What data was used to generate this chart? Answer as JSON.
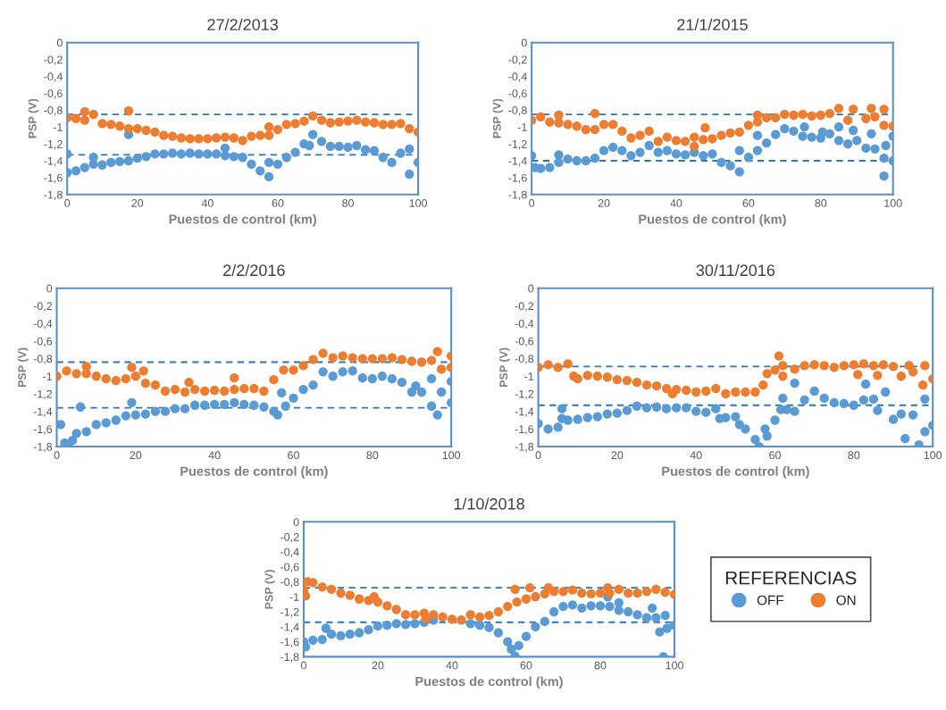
{
  "chart_data": [
    {
      "type": "scatter",
      "title": "27/2/2013",
      "xlabel": "Puestos de control (km)",
      "ylabel": "PSP (V)",
      "xlim": [
        0,
        100
      ],
      "ylim": [
        -1.8,
        0
      ],
      "xticks": [
        0,
        20,
        40,
        60,
        80,
        100
      ],
      "yticks": [
        {
          "value": -1.8,
          "label": "-1,8"
        },
        {
          "value": -1.6,
          "label": "-1,6"
        },
        {
          "value": -1.4,
          "label": "-1,4"
        },
        {
          "value": -1.2,
          "label": "-1,2"
        },
        {
          "value": -1,
          "label": "-1"
        },
        {
          "value": -0.8,
          "label": "-0,8"
        },
        {
          "value": -0.6,
          "label": "-0,6"
        },
        {
          "value": -0.4,
          "label": "-0,4"
        },
        {
          "value": -0.2,
          "label": "-0,2"
        },
        0
      ],
      "grid": false,
      "legend": false,
      "marker": "circle",
      "ref_lines": [
        {
          "axis": "y",
          "value": -0.85,
          "color": "#2e75b6",
          "line_style": "dashed"
        },
        {
          "axis": "y",
          "value": -1.33,
          "color": "#2e75b6",
          "line_style": "dashed"
        }
      ],
      "series": [
        {
          "color": "#5b9bd5",
          "x": [
            0,
            0,
            2.5,
            5,
            7.5,
            7.5,
            10,
            12.5,
            15,
            17.5,
            17.5,
            20,
            22.5,
            25,
            27.5,
            30,
            32.5,
            35,
            37.5,
            40,
            42.5,
            45,
            45,
            47.5,
            50,
            52.5,
            55,
            57.5,
            57.5,
            60,
            62.5,
            65,
            67.5,
            69,
            70,
            72.5,
            75,
            77.5,
            80,
            82.5,
            85,
            87.5,
            90,
            92.5,
            95,
            97.5,
            97.5,
            100
          ],
          "values": [
            -1.32,
            -1.54,
            -1.52,
            -1.48,
            -1.36,
            -1.44,
            -1.45,
            -1.42,
            -1.41,
            -1.4,
            -1.09,
            -1.37,
            -1.35,
            -1.32,
            -1.32,
            -1.31,
            -1.32,
            -1.31,
            -1.32,
            -1.32,
            -1.32,
            -1.25,
            -1.34,
            -1.35,
            -1.36,
            -1.44,
            -1.52,
            -1.59,
            -1.42,
            -1.44,
            -1.36,
            -1.3,
            -1.2,
            -1.22,
            -1.09,
            -1.17,
            -1.23,
            -1.23,
            -1.24,
            -1.22,
            -1.27,
            -1.28,
            -1.36,
            -1.42,
            -1.31,
            -1.56,
            -1.26,
            -1.42
          ]
        },
        {
          "color": "#ed7d31",
          "x": [
            0,
            2.5,
            5,
            5,
            7.5,
            10,
            12.5,
            15,
            17.5,
            17.5,
            20,
            22.5,
            25,
            27.5,
            30,
            32.5,
            35,
            37.5,
            40,
            42.5,
            45,
            47.5,
            50,
            52.5,
            55,
            57.5,
            57.5,
            60,
            62.5,
            65,
            67.5,
            70,
            72.5,
            75,
            77.5,
            80,
            82.5,
            85,
            87.5,
            90,
            92.5,
            95,
            97.5,
            100
          ],
          "values": [
            -0.89,
            -0.9,
            -0.82,
            -0.92,
            -0.85,
            -0.96,
            -0.97,
            -0.99,
            -0.81,
            -1.02,
            -1.02,
            -1.04,
            -1.06,
            -1.1,
            -1.11,
            -1.13,
            -1.14,
            -1.14,
            -1.14,
            -1.13,
            -1.12,
            -1.13,
            -1.16,
            -1.11,
            -1.1,
            -1.1,
            -1.0,
            -1.03,
            -0.97,
            -0.96,
            -0.93,
            -0.87,
            -0.92,
            -0.95,
            -0.94,
            -0.93,
            -0.92,
            -0.94,
            -0.95,
            -0.97,
            -0.97,
            -0.96,
            -1.02,
            -1.06
          ]
        }
      ]
    },
    {
      "type": "scatter",
      "title": "21/1/2015",
      "xlabel": "Puestos de control (km)",
      "ylabel": "PSP (V)",
      "xlim": [
        0,
        100
      ],
      "ylim": [
        -1.8,
        0
      ],
      "xticks": [
        0,
        20,
        40,
        60,
        80,
        100
      ],
      "yticks": [
        {
          "value": -1.8,
          "label": "-1,8"
        },
        {
          "value": -1.6,
          "label": "-1,6"
        },
        {
          "value": -1.4,
          "label": "-1,4"
        },
        {
          "value": -1.2,
          "label": "-1,2"
        },
        {
          "value": -1,
          "label": "-1"
        },
        {
          "value": -0.8,
          "label": "-0,8"
        },
        {
          "value": -0.6,
          "label": "-0,6"
        },
        {
          "value": -0.4,
          "label": "-0,4"
        },
        {
          "value": -0.2,
          "label": "-0,2"
        },
        0
      ],
      "grid": false,
      "legend": false,
      "marker": "circle",
      "ref_lines": [
        {
          "axis": "y",
          "value": -0.85,
          "color": "#2e75b6",
          "line_style": "dashed"
        },
        {
          "axis": "y",
          "value": -1.4,
          "color": "#2e75b6",
          "line_style": "dashed"
        }
      ],
      "series": [
        {
          "color": "#5b9bd5",
          "x": [
            0,
            1,
            2.5,
            5,
            7.5,
            7.5,
            10,
            12.5,
            15,
            17.5,
            20,
            22.5,
            25,
            27.5,
            30,
            32.5,
            35,
            37.5,
            40,
            42.5,
            45,
            47.5,
            50,
            52.5,
            55,
            57.5,
            57.5,
            60,
            62.5,
            62.5,
            65,
            67.5,
            70,
            72.5,
            75,
            75.5,
            77.5,
            80,
            80.5,
            82.5,
            85,
            85,
            87.5,
            89,
            90,
            92.5,
            94,
            95,
            97.5,
            97.5,
            98,
            100,
            100
          ],
          "values": [
            -1.34,
            -1.48,
            -1.49,
            -1.48,
            -1.33,
            -1.42,
            -1.38,
            -1.4,
            -1.4,
            -1.37,
            -1.28,
            -1.24,
            -1.28,
            -1.34,
            -1.3,
            -1.22,
            -1.3,
            -1.28,
            -1.32,
            -1.33,
            -1.3,
            -1.34,
            -1.32,
            -1.42,
            -1.46,
            -1.53,
            -1.28,
            -1.36,
            -1.28,
            -1.1,
            -1.19,
            -1.09,
            -1.02,
            -1.05,
            -1.11,
            -1.0,
            -1.12,
            -1.13,
            -1.06,
            -1.08,
            -1.16,
            -1.0,
            -1.2,
            -1.04,
            -1.16,
            -1.25,
            -1.08,
            -1.26,
            -1.58,
            -1.37,
            -1.22,
            -1.4,
            -1.11
          ]
        },
        {
          "color": "#ed7d31",
          "x": [
            0,
            2.5,
            5,
            7.5,
            7.5,
            10,
            12.5,
            15,
            17.5,
            17.5,
            20,
            22.5,
            25,
            27.5,
            30,
            32.5,
            35,
            37.5,
            40,
            42.5,
            45,
            45,
            47.5,
            48,
            50,
            52.5,
            55,
            57.5,
            60,
            62.5,
            62.5,
            65,
            67.5,
            70,
            72.5,
            75,
            77.5,
            80,
            82.5,
            85,
            87.5,
            89,
            92.5,
            94,
            95,
            97.5,
            97.5,
            100
          ],
          "values": [
            -0.92,
            -0.88,
            -0.94,
            -0.86,
            -0.95,
            -0.97,
            -0.99,
            -1.03,
            -0.84,
            -1.03,
            -0.97,
            -0.97,
            -1.05,
            -1.13,
            -1.1,
            -1.05,
            -1.17,
            -1.12,
            -1.16,
            -1.17,
            -1.23,
            -1.12,
            -1.15,
            -1.01,
            -1.14,
            -1.1,
            -1.07,
            -1.06,
            -0.98,
            -0.94,
            -0.86,
            -0.89,
            -0.89,
            -0.85,
            -0.86,
            -0.85,
            -0.87,
            -0.86,
            -0.84,
            -0.78,
            -0.92,
            -0.79,
            -0.9,
            -0.78,
            -0.88,
            -0.79,
            -0.98,
            -0.99
          ]
        }
      ]
    },
    {
      "type": "scatter",
      "title": "2/2/2016",
      "xlabel": "Puestos de control (km)",
      "ylabel": "PSP (V)",
      "xlim": [
        0,
        100
      ],
      "ylim": [
        -1.8,
        0
      ],
      "xticks": [
        0,
        20,
        40,
        60,
        80,
        100
      ],
      "yticks": [
        {
          "value": -1.8,
          "label": "-1,8"
        },
        {
          "value": -1.6,
          "label": "-1,6"
        },
        {
          "value": -1.4,
          "label": "-1,4"
        },
        {
          "value": -1.2,
          "label": "-1,2"
        },
        {
          "value": -1,
          "label": "-1"
        },
        {
          "value": -0.8,
          "label": "-0,8"
        },
        {
          "value": -0.6,
          "label": "-0,6"
        },
        {
          "value": -0.4,
          "label": "-0,4"
        },
        {
          "value": -0.2,
          "label": "-0,2"
        },
        0
      ],
      "grid": false,
      "legend": false,
      "marker": "circle",
      "ref_lines": [
        {
          "axis": "y",
          "value": -0.84,
          "color": "#2e75b6",
          "line_style": "dashed"
        },
        {
          "axis": "y",
          "value": -1.36,
          "color": "#2e75b6",
          "line_style": "dashed"
        }
      ],
      "series": [
        {
          "color": "#5b9bd5",
          "x": [
            1,
            2,
            3,
            4,
            5,
            6,
            7.5,
            10,
            12.5,
            15,
            17.5,
            19,
            20,
            22.5,
            25,
            27.5,
            30,
            32.5,
            35,
            37.5,
            40,
            42.5,
            45,
            47.5,
            50,
            52.5,
            55,
            56,
            57,
            58,
            60,
            62.5,
            65,
            67.5,
            70,
            72.5,
            75,
            77.5,
            80,
            82.5,
            85,
            87.5,
            90,
            91,
            92.5,
            95,
            95,
            96.5,
            97.5,
            100,
            100
          ],
          "values": [
            -1.55,
            -1.76,
            -1.78,
            -1.73,
            -1.65,
            -1.35,
            -1.63,
            -1.55,
            -1.53,
            -1.5,
            -1.45,
            -1.3,
            -1.44,
            -1.43,
            -1.4,
            -1.4,
            -1.37,
            -1.37,
            -1.33,
            -1.33,
            -1.32,
            -1.32,
            -1.3,
            -1.32,
            -1.33,
            -1.35,
            -1.4,
            -1.44,
            -1.19,
            -1.34,
            -1.25,
            -1.15,
            -1.1,
            -0.95,
            -1.0,
            -0.95,
            -0.94,
            -1.02,
            -1.03,
            -1.0,
            -1.03,
            -1.07,
            -1.18,
            -1.11,
            -1.18,
            -1.03,
            -1.34,
            -1.44,
            -1.18,
            -1.3,
            -1.06
          ]
        },
        {
          "color": "#ed7d31",
          "x": [
            0,
            2.5,
            5,
            7.5,
            7.5,
            10,
            12.5,
            15,
            17.5,
            19,
            20,
            22,
            22.5,
            25,
            27.5,
            30,
            32.5,
            33.5,
            35,
            37.5,
            40,
            42.5,
            45,
            45,
            47.5,
            50,
            52.5,
            55,
            57.5,
            60,
            62.5,
            65,
            67.5,
            70,
            72.5,
            75,
            77.5,
            80,
            82.5,
            85,
            87.5,
            90,
            92.5,
            95,
            96.5,
            97.5,
            100,
            100
          ],
          "values": [
            -1.0,
            -0.94,
            -0.97,
            -0.89,
            -0.97,
            -1.0,
            -1.03,
            -1.05,
            -1.03,
            -0.9,
            -1.0,
            -0.94,
            -1.08,
            -1.1,
            -1.17,
            -1.15,
            -1.18,
            -1.07,
            -1.15,
            -1.17,
            -1.16,
            -1.17,
            -1.02,
            -1.15,
            -1.14,
            -1.14,
            -1.17,
            -1.04,
            -0.93,
            -0.93,
            -0.88,
            -0.81,
            -0.74,
            -0.79,
            -0.77,
            -0.79,
            -0.8,
            -0.8,
            -0.8,
            -0.79,
            -0.81,
            -0.83,
            -0.84,
            -0.82,
            -0.72,
            -0.92,
            -0.77,
            -0.9
          ]
        }
      ]
    },
    {
      "type": "scatter",
      "title": "30/11/2016",
      "xlabel": "Puestos de control (km)",
      "ylabel": "PSP (V)",
      "xlim": [
        0,
        100
      ],
      "ylim": [
        -1.8,
        0
      ],
      "xticks": [
        0,
        20,
        40,
        60,
        80,
        100
      ],
      "yticks": [
        {
          "value": -1.8,
          "label": "-1,8"
        },
        {
          "value": -1.6,
          "label": "-1,6"
        },
        {
          "value": -1.4,
          "label": "-1,4"
        },
        {
          "value": -1.2,
          "label": "-1,2"
        },
        {
          "value": -1,
          "label": "-1"
        },
        {
          "value": -0.8,
          "label": "-0,8"
        },
        {
          "value": -0.6,
          "label": "-0,6"
        },
        {
          "value": -0.4,
          "label": "-0,4"
        },
        {
          "value": -0.2,
          "label": "-0,2"
        },
        0
      ],
      "grid": false,
      "legend": false,
      "marker": "circle",
      "ref_lines": [
        {
          "axis": "y",
          "value": -0.89,
          "color": "#2e75b6",
          "line_style": "dashed"
        },
        {
          "axis": "y",
          "value": -1.33,
          "color": "#2e75b6",
          "line_style": "dashed"
        }
      ],
      "series": [
        {
          "color": "#5b9bd5",
          "x": [
            0,
            2.5,
            5,
            6,
            6,
            7.5,
            10,
            12.5,
            15,
            17.5,
            20,
            22.5,
            25,
            27.5,
            30,
            32.5,
            35,
            37.5,
            40,
            42.5,
            45,
            46,
            47.5,
            50,
            51,
            52.5,
            55,
            56,
            57.5,
            58,
            60,
            61.5,
            62,
            63,
            65,
            65,
            67.5,
            70,
            72.5,
            75,
            77.5,
            80,
            82.5,
            83,
            85,
            86,
            88,
            90,
            92,
            93,
            95,
            96.5,
            98,
            98,
            100
          ],
          "values": [
            -1.54,
            -1.6,
            -1.58,
            -1.37,
            -1.48,
            -1.5,
            -1.49,
            -1.47,
            -1.46,
            -1.43,
            -1.42,
            -1.39,
            -1.34,
            -1.36,
            -1.35,
            -1.37,
            -1.36,
            -1.36,
            -1.4,
            -1.41,
            -1.37,
            -1.48,
            -1.47,
            -1.46,
            -1.55,
            -1.6,
            -1.72,
            -1.8,
            -1.6,
            -1.68,
            -1.5,
            -1.38,
            -1.25,
            -1.38,
            -1.08,
            -1.4,
            -1.27,
            -1.17,
            -1.25,
            -1.3,
            -1.31,
            -1.33,
            -1.27,
            -1.09,
            -1.26,
            -1.39,
            -1.18,
            -1.49,
            -1.43,
            -1.71,
            -1.44,
            -1.78,
            -1.26,
            -1.63,
            -1.56
          ]
        },
        {
          "color": "#ed7d31",
          "x": [
            0,
            2.5,
            5,
            7.5,
            9,
            10,
            12.5,
            15,
            17.5,
            20,
            22.5,
            25,
            27.5,
            30,
            32.5,
            34,
            35,
            37.5,
            40,
            42.5,
            45,
            47.5,
            50,
            52.5,
            55,
            57,
            58,
            60,
            61,
            62,
            62,
            65,
            67.5,
            70,
            72.5,
            75,
            77.5,
            80,
            81,
            82.5,
            85,
            86,
            87.5,
            90,
            92,
            94,
            95,
            97.5,
            98,
            100
          ],
          "values": [
            -0.9,
            -0.87,
            -0.9,
            -0.86,
            -1.0,
            -1.03,
            -0.99,
            -1.0,
            -1.01,
            -1.04,
            -1.05,
            -1.07,
            -1.1,
            -1.11,
            -1.14,
            -1.2,
            -1.15,
            -1.16,
            -1.18,
            -1.17,
            -1.14,
            -1.2,
            -1.18,
            -1.18,
            -1.18,
            -1.1,
            -0.97,
            -0.93,
            -0.77,
            -0.88,
            -1.0,
            -0.92,
            -0.88,
            -0.87,
            -0.88,
            -0.9,
            -0.88,
            -0.87,
            -0.98,
            -0.86,
            -0.88,
            -0.99,
            -0.87,
            -0.89,
            -1.0,
            -0.88,
            -0.95,
            -1.1,
            -0.88,
            -1.03
          ]
        }
      ]
    },
    {
      "type": "scatter",
      "title": "1/10/2018",
      "xlabel": "Puestos de control (km)",
      "ylabel": "PSP (V)",
      "xlim": [
        0,
        100
      ],
      "ylim": [
        -1.8,
        0
      ],
      "xticks": [
        0,
        20,
        40,
        60,
        80,
        100
      ],
      "yticks": [
        {
          "value": -1.8,
          "label": "-1,8"
        },
        {
          "value": -1.6,
          "label": "-1,6"
        },
        {
          "value": -1.4,
          "label": "-1,4"
        },
        {
          "value": -1.2,
          "label": "-1,2"
        },
        {
          "value": -1,
          "label": "-1"
        },
        {
          "value": -0.8,
          "label": "-0,8"
        },
        {
          "value": -0.6,
          "label": "-0,6"
        },
        {
          "value": -0.4,
          "label": "-0,4"
        },
        {
          "value": -0.2,
          "label": "-0,2"
        },
        0
      ],
      "grid": false,
      "legend": "right",
      "legend_title": "REFERENCIAS",
      "marker": "circle",
      "ref_lines": [
        {
          "axis": "y",
          "value": -0.88,
          "color": "#2e75b6",
          "line_style": "dashed"
        },
        {
          "axis": "y",
          "value": -1.34,
          "color": "#2e75b6",
          "line_style": "dashed"
        }
      ],
      "series": [
        {
          "name": "OFF",
          "color": "#5b9bd5",
          "x": [
            0,
            0.5,
            2.5,
            5,
            6,
            7.5,
            10,
            12.5,
            15,
            17.5,
            20,
            22.5,
            25,
            27.5,
            30,
            32.5,
            35,
            37.5,
            40,
            42.5,
            45,
            47.5,
            50,
            52.5,
            55,
            56,
            57,
            58,
            60,
            62.5,
            65,
            67.5,
            70,
            72.5,
            75,
            77.5,
            80,
            82,
            82.5,
            85,
            85,
            87.5,
            90,
            92.5,
            94,
            95,
            96,
            97,
            97.5,
            98,
            100
          ],
          "values": [
            -1.6,
            -1.67,
            -1.58,
            -1.57,
            -1.42,
            -1.5,
            -1.52,
            -1.5,
            -1.48,
            -1.44,
            -1.39,
            -1.38,
            -1.36,
            -1.37,
            -1.36,
            -1.34,
            -1.31,
            null,
            null,
            null,
            -1.36,
            -1.38,
            -1.41,
            -1.48,
            -1.6,
            -1.7,
            -1.79,
            -1.65,
            -1.53,
            -1.4,
            -1.33,
            -1.2,
            -1.13,
            -1.11,
            -1.15,
            -1.12,
            -1.12,
            -1.0,
            -1.13,
            -1.08,
            -1.18,
            -1.2,
            -1.24,
            -1.28,
            -1.15,
            -1.28,
            -1.47,
            -1.8,
            -1.25,
            -1.42,
            -1.38
          ]
        },
        {
          "name": "ON",
          "color": "#ed7d31",
          "x": [
            0,
            0.5,
            1,
            2.5,
            5,
            7.5,
            10,
            12.5,
            15,
            17.5,
            19,
            20,
            22.5,
            25,
            27.5,
            30,
            32.5,
            33,
            35,
            37.5,
            40,
            42.5,
            45,
            47.5,
            50,
            52.5,
            55,
            57,
            57.5,
            60,
            61,
            62.5,
            65,
            66,
            67.5,
            70,
            72.5,
            75,
            77.5,
            80,
            82,
            82.5,
            85,
            87.5,
            90,
            92.5,
            95,
            97.5,
            100
          ],
          "values": [
            -0.91,
            -0.99,
            -0.8,
            -0.81,
            -0.87,
            -0.9,
            -0.95,
            -0.98,
            -1.03,
            -1.05,
            -1.0,
            -1.07,
            -1.12,
            -1.17,
            -1.24,
            -1.24,
            -1.22,
            -1.29,
            -1.24,
            -1.27,
            -1.3,
            -1.31,
            -1.24,
            -1.27,
            -1.25,
            -1.2,
            -1.13,
            -0.9,
            -1.07,
            -1.03,
            -0.88,
            -1.0,
            -0.96,
            -0.88,
            -0.93,
            -0.93,
            -0.91,
            -0.95,
            -0.96,
            -0.95,
            -0.88,
            -0.95,
            -0.9,
            -0.95,
            -0.95,
            -0.93,
            -0.9,
            -0.94,
            -0.97
          ]
        }
      ]
    }
  ]
}
